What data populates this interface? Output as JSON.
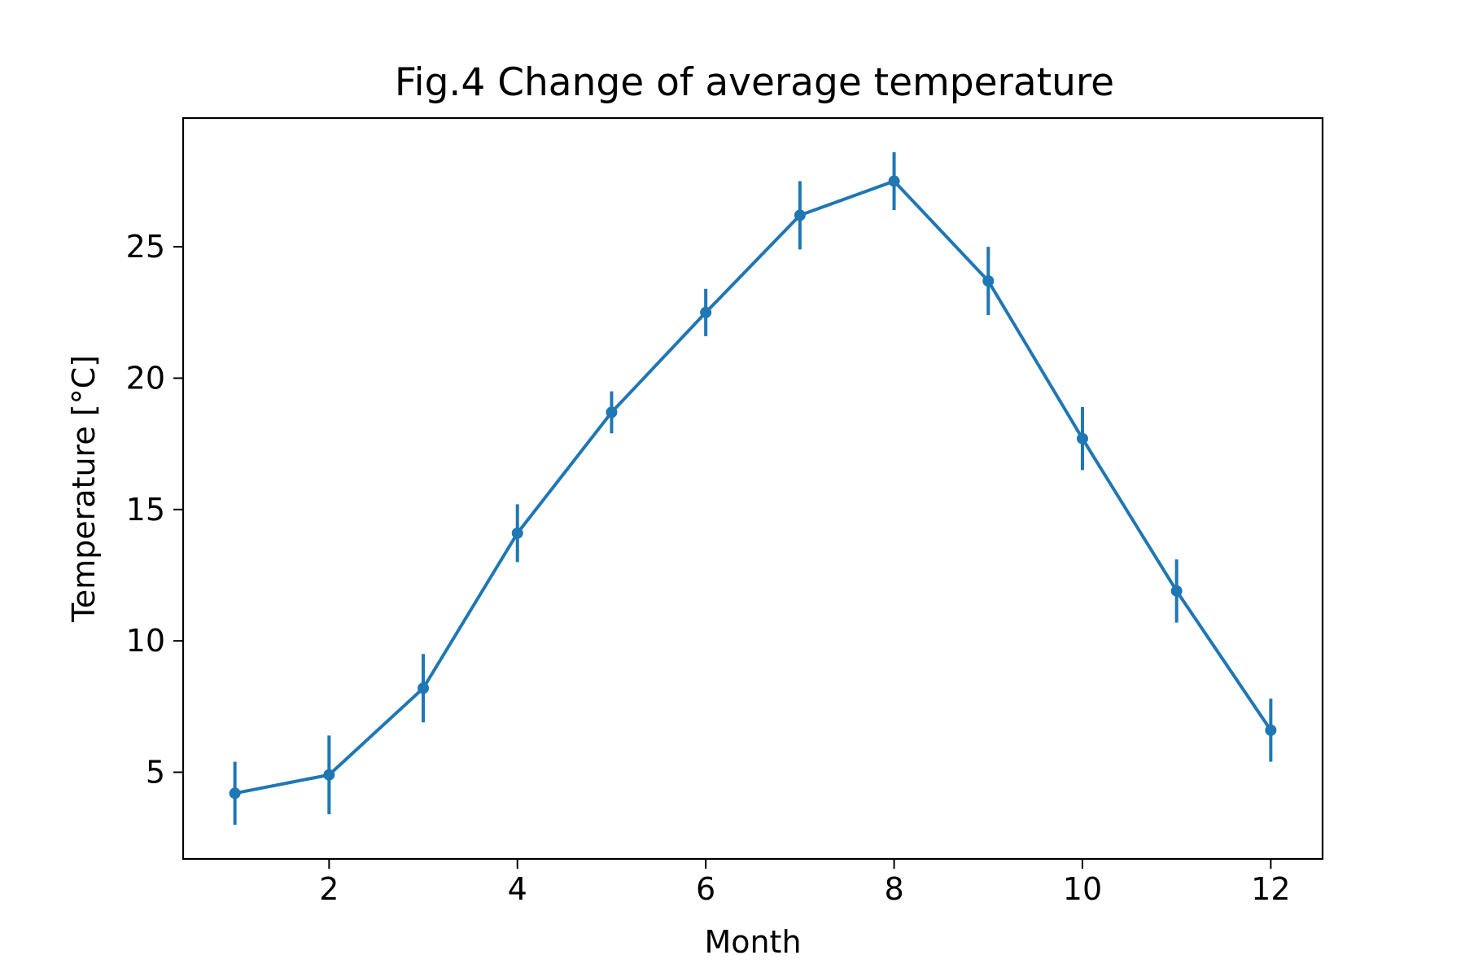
{
  "chart_data": {
    "type": "line",
    "title": "Fig.4 Change of average temperature",
    "xlabel": "Month",
    "ylabel": "Temperature [°C]",
    "xlim": [
      0.45,
      12.55
    ],
    "ylim": [
      1.7,
      29.9
    ],
    "x_ticks": [
      2,
      4,
      6,
      8,
      10,
      12
    ],
    "y_ticks": [
      5,
      10,
      15,
      20,
      25
    ],
    "grid": false,
    "color": "#1f77b4",
    "series": [
      {
        "x": [
          1,
          2,
          3,
          4,
          5,
          6,
          7,
          8,
          9,
          10,
          11,
          12
        ],
        "values": [
          4.2,
          4.9,
          8.2,
          14.1,
          18.7,
          22.5,
          26.2,
          27.5,
          23.7,
          17.7,
          11.9,
          6.6
        ],
        "errors": [
          1.2,
          1.5,
          1.3,
          1.1,
          0.8,
          0.9,
          1.3,
          1.1,
          1.3,
          1.2,
          1.2,
          1.2
        ]
      }
    ]
  }
}
